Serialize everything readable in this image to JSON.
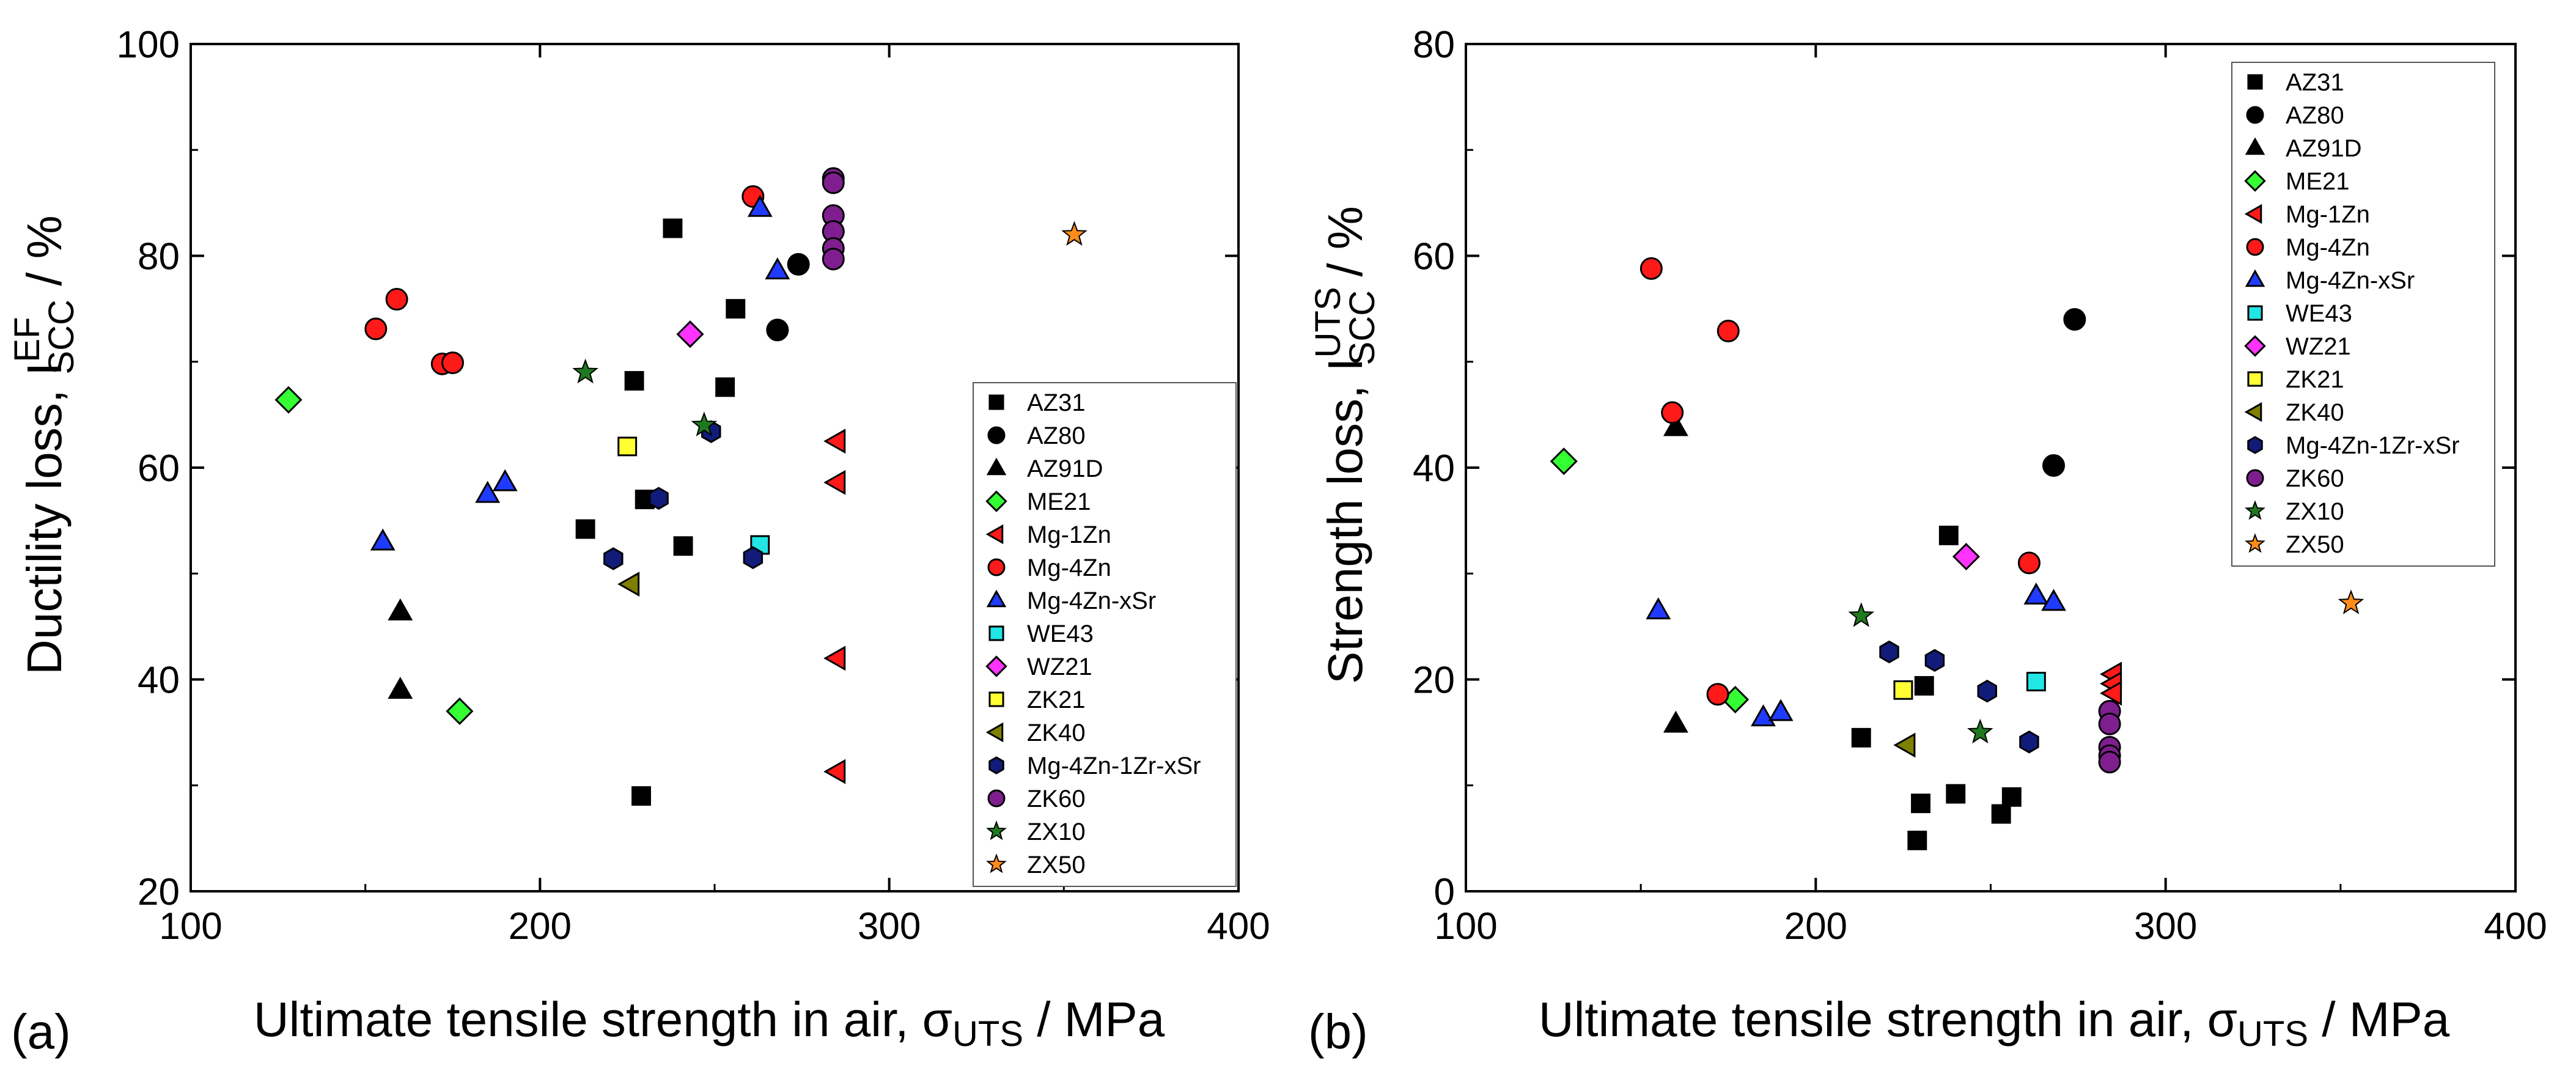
{
  "figure": {
    "series": [
      {
        "name": "AZ31",
        "marker": "square",
        "color": "#000000"
      },
      {
        "name": "AZ80",
        "marker": "circle",
        "color": "#000000"
      },
      {
        "name": "AZ91D",
        "marker": "triangle-up",
        "color": "#000000"
      },
      {
        "name": "ME21",
        "marker": "diamond",
        "color": "#33ff33"
      },
      {
        "name": "Mg-1Zn",
        "marker": "triangle-left",
        "color": "#ff1a1a"
      },
      {
        "name": "Mg-4Zn",
        "marker": "circle",
        "color": "#ff1a1a"
      },
      {
        "name": "Mg-4Zn-xSr",
        "marker": "triangle-up",
        "color": "#1f3bff"
      },
      {
        "name": "WE43",
        "marker": "square",
        "color": "#22e6e6"
      },
      {
        "name": "WZ21",
        "marker": "diamond",
        "color": "#ff33ff"
      },
      {
        "name": "ZK21",
        "marker": "square",
        "color": "#ffff33"
      },
      {
        "name": "ZK40",
        "marker": "triangle-left",
        "color": "#808000"
      },
      {
        "name": "Mg-4Zn-1Zr-xSr",
        "marker": "hexagon",
        "color": "#111c7a"
      },
      {
        "name": "ZK60",
        "marker": "circle",
        "color": "#7f1f8f"
      },
      {
        "name": "ZX10",
        "marker": "star",
        "color": "#1f7a1f"
      },
      {
        "name": "ZX50",
        "marker": "star",
        "color": "#ff8c1a"
      }
    ]
  },
  "chart_data": [
    {
      "type": "scatter",
      "panel_label": "(a)",
      "xlabel": "Ultimate tensile strength in air, σUTS / MPa",
      "xlabel_main": "Ultimate tensile strength in air, σ",
      "xlabel_sub": "UTS",
      "xlabel_end": " / MPa",
      "ylabel": "Ductility loss, I^EF_SCC / %",
      "ylabel_main": "Ductility loss, I",
      "ylabel_sup": "EF",
      "ylabel_sub": "SCC",
      "ylabel_end": " / %",
      "xlim": [
        100,
        400
      ],
      "ylim": [
        20,
        100
      ],
      "xticks": [
        "100",
        "200",
        "300",
        "400"
      ],
      "yticks": [
        "20",
        "40",
        "60",
        "80",
        "100"
      ],
      "legend": "bottom-right",
      "series": {
        "AZ31": [
          [
            229,
            29
          ],
          [
            213,
            54.2
          ],
          [
            227,
            68.2
          ],
          [
            230,
            57
          ],
          [
            238,
            82.6
          ],
          [
            241,
            52.6
          ],
          [
            253,
            67.6
          ],
          [
            256,
            75
          ]
        ],
        "AZ80": [
          [
            268,
            73
          ],
          [
            274,
            79.2
          ]
        ],
        "AZ91D": [
          [
            160,
            46.4
          ],
          [
            160,
            39
          ]
        ],
        "ME21": [
          [
            128,
            66.4
          ],
          [
            177,
            37
          ]
        ],
        "Mg-1Zn": [
          [
            285,
            62.5
          ],
          [
            285,
            58.6
          ],
          [
            285,
            42
          ],
          [
            285,
            31.3
          ]
        ],
        "Mg-4Zn": [
          [
            153,
            73.1
          ],
          [
            159,
            75.9
          ],
          [
            172,
            69.8
          ],
          [
            175,
            69.9
          ],
          [
            261,
            85.6
          ]
        ],
        "Mg-4Zn-xSr": [
          [
            155,
            53
          ],
          [
            185,
            57.5
          ],
          [
            190,
            58.6
          ],
          [
            263,
            84.5
          ],
          [
            268,
            78.6
          ]
        ],
        "WE43": [
          [
            263,
            52.7
          ]
        ],
        "WZ21": [
          [
            243,
            72.6
          ]
        ],
        "ZK21": [
          [
            225,
            62
          ]
        ],
        "ZK40": [
          [
            226,
            49
          ]
        ],
        "Mg-4Zn-1Zr-xSr": [
          [
            221,
            51.4
          ],
          [
            234,
            57.1
          ],
          [
            249,
            63.4
          ],
          [
            261,
            51.5
          ]
        ],
        "ZK60": [
          [
            284,
            87.3
          ],
          [
            284,
            86.9
          ],
          [
            284,
            83.8
          ],
          [
            284,
            82.3
          ],
          [
            284,
            80.7
          ],
          [
            284,
            79.7
          ]
        ],
        "ZX10": [
          [
            213,
            69
          ],
          [
            247,
            64
          ]
        ],
        "ZX50": [
          [
            353,
            82
          ]
        ]
      }
    },
    {
      "type": "scatter",
      "panel_label": "(b)",
      "xlabel": "Ultimate tensile strength in air, σUTS / MPa",
      "xlabel_main": "Ultimate tensile strength in air, σ",
      "xlabel_sub": "UTS",
      "xlabel_end": " / MPa",
      "ylabel": "Strength loss, I^UTS_SCC / %",
      "ylabel_main": "Strength loss, I",
      "ylabel_sup": "UTS",
      "ylabel_sub": "SCC",
      "ylabel_end": " / %",
      "xlim": [
        100,
        400
      ],
      "ylim": [
        0,
        80
      ],
      "xticks": [
        "100",
        "200",
        "300",
        "400"
      ],
      "yticks": [
        "0",
        "20",
        "40",
        "60",
        "80"
      ],
      "legend": "top-right",
      "series": {
        "AZ31": [
          [
            213,
            14.5
          ],
          [
            229,
            4.8
          ],
          [
            230,
            8.3
          ],
          [
            231,
            19.4
          ],
          [
            238,
            33.6
          ],
          [
            240,
            9.2
          ],
          [
            253,
            7.3
          ],
          [
            256,
            8.9
          ]
        ],
        "AZ80": [
          [
            268,
            40.2
          ],
          [
            274,
            54
          ]
        ],
        "AZ91D": [
          [
            160,
            43.8
          ],
          [
            160,
            15.8
          ]
        ],
        "ME21": [
          [
            128,
            40.6
          ],
          [
            177,
            18.1
          ]
        ],
        "Mg-1Zn": [
          [
            285,
            20.5
          ],
          [
            285,
            19.6
          ],
          [
            285,
            18.7
          ]
        ],
        "Mg-4Zn": [
          [
            153,
            58.8
          ],
          [
            159,
            45.2
          ],
          [
            172,
            18.6
          ],
          [
            175,
            52.9
          ],
          [
            261,
            31
          ]
        ],
        "Mg-4Zn-xSr": [
          [
            155,
            26.5
          ],
          [
            185,
            16.4
          ],
          [
            190,
            16.9
          ],
          [
            263,
            27.9
          ],
          [
            268,
            27.3
          ]
        ],
        "WE43": [
          [
            263,
            19.8
          ]
        ],
        "WZ21": [
          [
            243,
            31.6
          ]
        ],
        "ZK21": [
          [
            225,
            19
          ]
        ],
        "ZK40": [
          [
            226,
            13.8
          ]
        ],
        "Mg-4Zn-1Zr-xSr": [
          [
            221,
            22.6
          ],
          [
            234,
            21.8
          ],
          [
            249,
            18.9
          ],
          [
            261,
            14.1
          ]
        ],
        "ZK60": [
          [
            284,
            17
          ],
          [
            284,
            15.8
          ],
          [
            284,
            13.6
          ],
          [
            284,
            12.8
          ],
          [
            284,
            12.2
          ]
        ],
        "ZX10": [
          [
            213,
            26
          ],
          [
            247,
            15
          ]
        ],
        "ZX50": [
          [
            353,
            27.2
          ]
        ]
      }
    }
  ]
}
